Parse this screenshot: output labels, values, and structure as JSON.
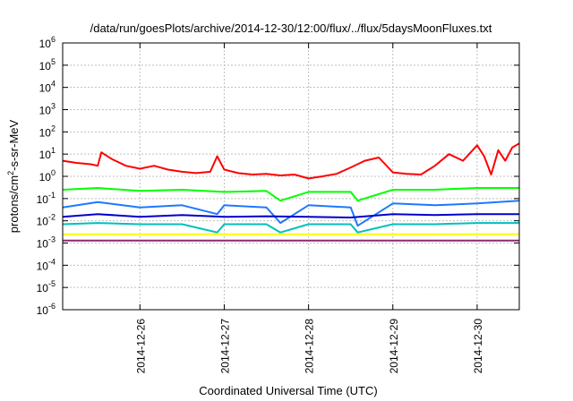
{
  "chart_data": {
    "type": "line",
    "title": "/data/run/goesPlots/archive/2014-12-30/12:00/flux/../flux/5daysMoonFluxes.txt",
    "xlabel": "Coordinated Universal Time (UTC)",
    "ylabel": "protons/cm2-s-sr-MeV",
    "ylabel_parts": [
      "protons/cm",
      "2",
      "-s-sr-MeV"
    ],
    "y_scale": "log",
    "ylim": [
      1e-06,
      1000000.0
    ],
    "y_ticks": [
      {
        "base": "10",
        "exp": "-6",
        "value": 1e-06
      },
      {
        "base": "10",
        "exp": "-5",
        "value": 1e-05
      },
      {
        "base": "10",
        "exp": "-4",
        "value": 0.0001
      },
      {
        "base": "10",
        "exp": "-3",
        "value": 0.001
      },
      {
        "base": "10",
        "exp": "-2",
        "value": 0.01
      },
      {
        "base": "10",
        "exp": "-1",
        "value": 0.1
      },
      {
        "base": "10",
        "exp": "0",
        "value": 1
      },
      {
        "base": "10",
        "exp": "1",
        "value": 10
      },
      {
        "base": "10",
        "exp": "2",
        "value": 100
      },
      {
        "base": "10",
        "exp": "3",
        "value": 1000
      },
      {
        "base": "10",
        "exp": "4",
        "value": 10000
      },
      {
        "base": "10",
        "exp": "5",
        "value": 100000
      },
      {
        "base": "10",
        "exp": "6",
        "value": 1000000
      }
    ],
    "xlim": [
      "2014-12-25T02:00",
      "2014-12-30T12:00"
    ],
    "x_ticks": [
      {
        "label": "2014-12-26",
        "value": "2014-12-26T00:00"
      },
      {
        "label": "2014-12-27",
        "value": "2014-12-27T00:00"
      },
      {
        "label": "2014-12-28",
        "value": "2014-12-28T00:00"
      },
      {
        "label": "2014-12-29",
        "value": "2014-12-29T00:00"
      },
      {
        "label": "2014-12-30",
        "value": "2014-12-30T00:00"
      }
    ],
    "grid": true,
    "series": [
      {
        "color": "#ff0000",
        "x": [
          "2014-12-25T02:00",
          "2014-12-25T06:00",
          "2014-12-25T10:00",
          "2014-12-25T12:00",
          "2014-12-25T13:00",
          "2014-12-25T16:00",
          "2014-12-25T20:00",
          "2014-12-26T00:00",
          "2014-12-26T04:00",
          "2014-12-26T08:00",
          "2014-12-26T12:00",
          "2014-12-26T16:00",
          "2014-12-26T20:00",
          "2014-12-26T22:00",
          "2014-12-27T00:00",
          "2014-12-27T04:00",
          "2014-12-27T08:00",
          "2014-12-27T12:00",
          "2014-12-27T16:00",
          "2014-12-27T20:00",
          "2014-12-28T00:00",
          "2014-12-28T04:00",
          "2014-12-28T08:00",
          "2014-12-28T12:00",
          "2014-12-28T16:00",
          "2014-12-28T20:00",
          "2014-12-29T00:00",
          "2014-12-29T04:00",
          "2014-12-29T08:00",
          "2014-12-29T12:00",
          "2014-12-29T16:00",
          "2014-12-29T20:00",
          "2014-12-30T00:00",
          "2014-12-30T02:00",
          "2014-12-30T04:00",
          "2014-12-30T06:00",
          "2014-12-30T08:00",
          "2014-12-30T10:00",
          "2014-12-30T12:00"
        ],
        "y": [
          5,
          4,
          3.5,
          3,
          12,
          6,
          3,
          2.2,
          3,
          2,
          1.6,
          1.4,
          1.6,
          8,
          2,
          1.4,
          1.2,
          1.3,
          1.1,
          1.2,
          0.8,
          1,
          1.3,
          2.5,
          5,
          7,
          1.5,
          1.3,
          1.2,
          3,
          10,
          5,
          25,
          8,
          1.2,
          15,
          5,
          20,
          30
        ]
      },
      {
        "color": "#00ff00",
        "x": [
          "2014-12-25T02:00",
          "2014-12-25T12:00",
          "2014-12-26T00:00",
          "2014-12-26T12:00",
          "2014-12-27T00:00",
          "2014-12-27T12:00",
          "2014-12-27T16:00",
          "2014-12-28T00:00",
          "2014-12-28T12:00",
          "2014-12-28T14:00",
          "2014-12-29T00:00",
          "2014-12-29T12:00",
          "2014-12-30T00:00",
          "2014-12-30T12:00"
        ],
        "y": [
          0.25,
          0.3,
          0.22,
          0.25,
          0.2,
          0.22,
          0.08,
          0.2,
          0.2,
          0.08,
          0.25,
          0.25,
          0.3,
          0.3
        ]
      },
      {
        "color": "#1e78ff",
        "x": [
          "2014-12-25T02:00",
          "2014-12-25T12:00",
          "2014-12-26T00:00",
          "2014-12-26T12:00",
          "2014-12-26T22:00",
          "2014-12-27T00:00",
          "2014-12-27T12:00",
          "2014-12-27T16:00",
          "2014-12-28T00:00",
          "2014-12-28T12:00",
          "2014-12-28T14:00",
          "2014-12-29T00:00",
          "2014-12-29T12:00",
          "2014-12-30T00:00",
          "2014-12-30T12:00"
        ],
        "y": [
          0.04,
          0.07,
          0.04,
          0.05,
          0.02,
          0.05,
          0.04,
          0.008,
          0.05,
          0.04,
          0.006,
          0.06,
          0.05,
          0.06,
          0.08
        ]
      },
      {
        "color": "#0000cc",
        "x": [
          "2014-12-25T02:00",
          "2014-12-25T12:00",
          "2014-12-26T00:00",
          "2014-12-26T12:00",
          "2014-12-27T00:00",
          "2014-12-27T12:00",
          "2014-12-28T00:00",
          "2014-12-28T12:00",
          "2014-12-29T00:00",
          "2014-12-29T12:00",
          "2014-12-30T00:00",
          "2014-12-30T12:00"
        ],
        "y": [
          0.015,
          0.02,
          0.015,
          0.018,
          0.015,
          0.016,
          0.015,
          0.014,
          0.02,
          0.018,
          0.02,
          0.02
        ]
      },
      {
        "color": "#00bfbf",
        "x": [
          "2014-12-25T02:00",
          "2014-12-25T12:00",
          "2014-12-26T00:00",
          "2014-12-26T12:00",
          "2014-12-26T22:00",
          "2014-12-27T00:00",
          "2014-12-27T12:00",
          "2014-12-27T16:00",
          "2014-12-28T00:00",
          "2014-12-28T12:00",
          "2014-12-28T14:00",
          "2014-12-29T00:00",
          "2014-12-29T12:00",
          "2014-12-30T00:00",
          "2014-12-30T12:00"
        ],
        "y": [
          0.007,
          0.008,
          0.007,
          0.007,
          0.003,
          0.007,
          0.007,
          0.003,
          0.007,
          0.007,
          0.003,
          0.007,
          0.007,
          0.008,
          0.008
        ]
      },
      {
        "color": "#ffff00",
        "x": [
          "2014-12-25T02:00",
          "2014-12-26T00:00",
          "2014-12-27T00:00",
          "2014-12-28T00:00",
          "2014-12-29T00:00",
          "2014-12-30T00:00",
          "2014-12-30T12:00"
        ],
        "y": [
          0.0025,
          0.0025,
          0.0025,
          0.0025,
          0.0025,
          0.0025,
          0.0025
        ]
      },
      {
        "color": "#8b2a6e",
        "x": [
          "2014-12-25T02:00",
          "2014-12-26T00:00",
          "2014-12-27T00:00",
          "2014-12-28T00:00",
          "2014-12-29T00:00",
          "2014-12-30T00:00",
          "2014-12-30T12:00"
        ],
        "y": [
          0.0013,
          0.0013,
          0.0013,
          0.0013,
          0.0013,
          0.0013,
          0.0013
        ]
      }
    ]
  }
}
